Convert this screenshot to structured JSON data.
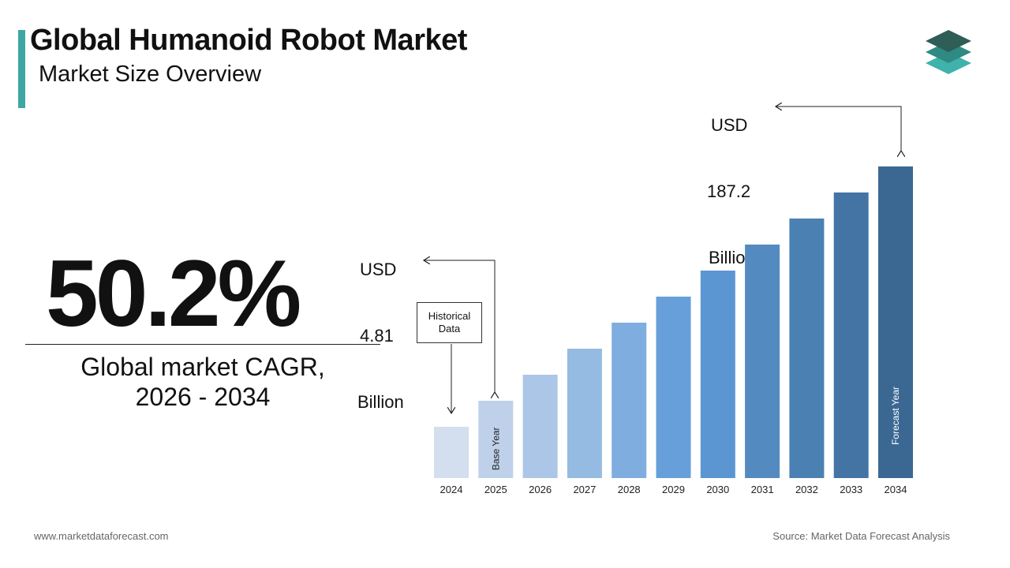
{
  "header": {
    "title": "Global Humanoid Robot Market",
    "subtitle": "Market Size Overview"
  },
  "cagr": {
    "value": "50.2%",
    "label_line1": "Global market CAGR,",
    "label_line2": "2026 - 2034"
  },
  "callouts": {
    "start": {
      "line1": "USD",
      "line2": "4.81",
      "line3": "Billion"
    },
    "end": {
      "line1": "USD",
      "line2": "187.2",
      "line3": "Billion"
    }
  },
  "historical_box": {
    "line1": "Historical",
    "line2": "Data"
  },
  "chart_data": {
    "type": "bar",
    "categories": [
      "2024",
      "2025",
      "2026",
      "2027",
      "2028",
      "2029",
      "2030",
      "2031",
      "2032",
      "2033",
      "2034"
    ],
    "values": [
      null,
      4.81,
      null,
      null,
      null,
      null,
      null,
      null,
      null,
      null,
      187.2
    ],
    "unit": "USD Billion",
    "bar_annotations": [
      {
        "category": "2025",
        "text": "Base Year"
      },
      {
        "category": "2034",
        "text": "Forecast Year"
      }
    ]
  },
  "colors": {
    "accent": "#3fa7a3",
    "bars": [
      "#d3deee",
      "#bfd1ea",
      "#abc6e6",
      "#96bbe2",
      "#7faddf",
      "#679fda",
      "#5b96d2",
      "#538bc1",
      "#4b80b2",
      "#4374a3",
      "#3b6892"
    ]
  },
  "footer": {
    "website": "www.marketdataforecast.com",
    "source": "Source: Market Data Forecast Analysis"
  }
}
